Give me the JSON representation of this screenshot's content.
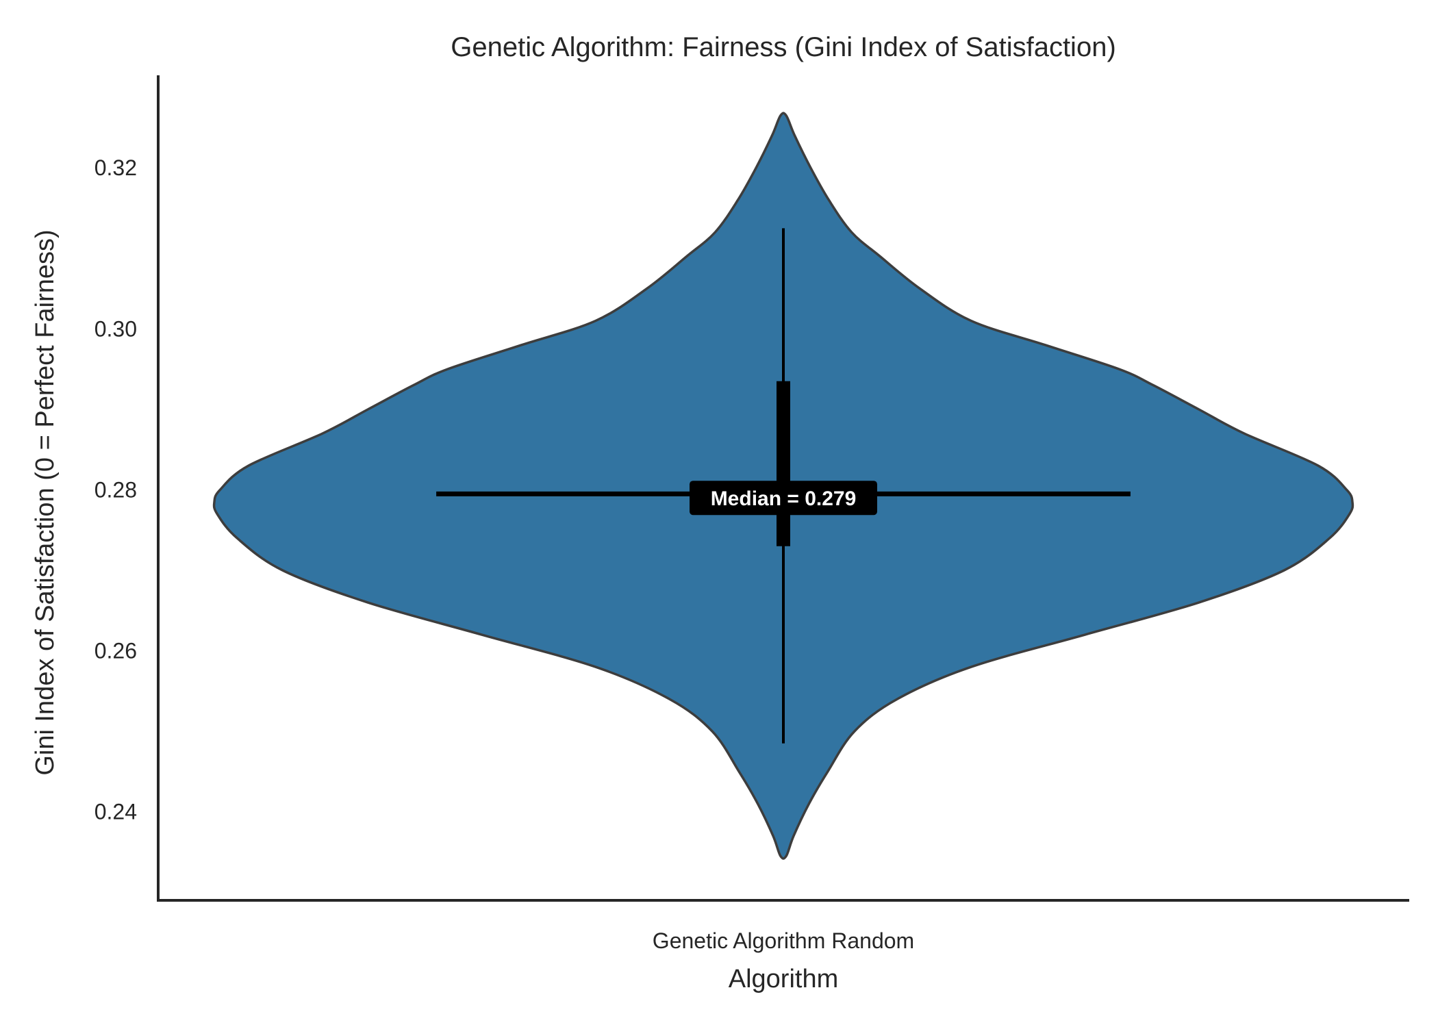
{
  "chart_data": {
    "type": "violin",
    "title": "Genetic Algorithm: Fairness (Gini Index of Satisfaction)",
    "xlabel": "Algorithm",
    "ylabel": "Gini Index of Satisfaction (0 = Perfect Fairness)",
    "categories": [
      "Genetic Algorithm Random"
    ],
    "yticks": [
      0.24,
      0.26,
      0.28,
      0.3,
      0.32
    ],
    "ytick_labels": [
      "0.24",
      "0.26",
      "0.28",
      "0.30",
      "0.32"
    ],
    "ylim": [
      0.229,
      0.3315
    ],
    "grid": false,
    "legend": "none",
    "violin": {
      "min": 0.2345,
      "max": 0.3265,
      "whisker_low": 0.2485,
      "whisker_high": 0.3125,
      "q1": 0.273,
      "q3": 0.2935,
      "median": 0.279,
      "mean_line": 0.2795,
      "mean_line_half_width": 0.61,
      "density_profile": [
        [
          0.2345,
          0.005
        ],
        [
          0.237,
          0.018
        ],
        [
          0.241,
          0.045
        ],
        [
          0.245,
          0.078
        ],
        [
          0.25,
          0.125
        ],
        [
          0.254,
          0.2
        ],
        [
          0.258,
          0.33
        ],
        [
          0.262,
          0.53
        ],
        [
          0.266,
          0.73
        ],
        [
          0.27,
          0.88
        ],
        [
          0.274,
          0.96
        ],
        [
          0.277,
          0.995
        ],
        [
          0.2785,
          1.0
        ],
        [
          0.28,
          0.99
        ],
        [
          0.283,
          0.94
        ],
        [
          0.287,
          0.81
        ],
        [
          0.29,
          0.73
        ],
        [
          0.293,
          0.65
        ],
        [
          0.295,
          0.59
        ],
        [
          0.298,
          0.46
        ],
        [
          0.301,
          0.33
        ],
        [
          0.305,
          0.24
        ],
        [
          0.309,
          0.17
        ],
        [
          0.312,
          0.12
        ],
        [
          0.316,
          0.08
        ],
        [
          0.32,
          0.048
        ],
        [
          0.324,
          0.02
        ],
        [
          0.3265,
          0.005
        ]
      ]
    },
    "annotation": "Median = 0.279",
    "colors": {
      "violin_fill": "#3274a1",
      "violin_edge": "#3d3d3d",
      "box": "#000000",
      "annotation_bg": "#000000",
      "annotation_text": "#ffffff",
      "axis": "#262626"
    }
  }
}
